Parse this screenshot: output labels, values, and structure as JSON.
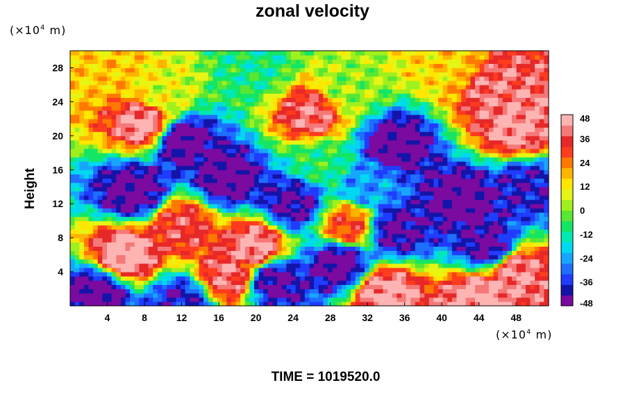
{
  "chart_data": {
    "type": "heatmap",
    "title": "zonal velocity",
    "ylabel": "Height",
    "x_unit": {
      "prefix": "(×10",
      "exp": "4",
      "suffix": " m)"
    },
    "y_unit": {
      "prefix": "(×10",
      "exp": "4",
      "suffix": " m)"
    },
    "xlim": [
      0,
      51.5
    ],
    "ylim": [
      0,
      30
    ],
    "x_ticks": [
      4,
      8,
      12,
      16,
      20,
      24,
      28,
      32,
      36,
      40,
      44,
      48
    ],
    "y_ticks": [
      4,
      8,
      12,
      16,
      20,
      24,
      28
    ],
    "colorbar": {
      "min": -48,
      "max": 48,
      "ticks": [
        48,
        36,
        24,
        12,
        0,
        -12,
        -24,
        -36,
        -48
      ],
      "colors": [
        "#7a0aa0",
        "#1414a8",
        "#1f3cff",
        "#1e6eff",
        "#17a6ff",
        "#00d8f0",
        "#00e8b4",
        "#14e664",
        "#5ae632",
        "#a0f01e",
        "#e6f514",
        "#ffe600",
        "#ffb400",
        "#ff7800",
        "#ff3c1e",
        "#e62828",
        "#f57878",
        "#ffb4b4"
      ]
    },
    "field_regions": [
      {
        "x": 3,
        "y": 1.5,
        "v": -48
      },
      {
        "x": 12,
        "y": 0.5,
        "v": -40
      },
      {
        "x": 6,
        "y": 6,
        "v": 48
      },
      {
        "x": 20,
        "y": 7,
        "v": 44
      },
      {
        "x": 17,
        "y": 3.5,
        "v": 40
      },
      {
        "x": 22,
        "y": 3,
        "v": -45
      },
      {
        "x": 29,
        "y": 5,
        "v": -48
      },
      {
        "x": 35,
        "y": 9,
        "v": -45
      },
      {
        "x": 34,
        "y": 1.5,
        "v": 46
      },
      {
        "x": 44,
        "y": 1,
        "v": 46
      },
      {
        "x": 48,
        "y": 4,
        "v": 42
      },
      {
        "x": 45,
        "y": 7,
        "v": -45
      },
      {
        "x": 7,
        "y": 13.5,
        "v": -48
      },
      {
        "x": 17,
        "y": 15,
        "v": -48
      },
      {
        "x": 24,
        "y": 12,
        "v": -44
      },
      {
        "x": 32,
        "y": 14,
        "v": -25
      },
      {
        "x": 42,
        "y": 12.5,
        "v": -48
      },
      {
        "x": 49,
        "y": 14,
        "v": -40
      },
      {
        "x": 12,
        "y": 19.5,
        "v": -48
      },
      {
        "x": 35,
        "y": 19,
        "v": -48
      },
      {
        "x": 27,
        "y": 17,
        "v": -8
      },
      {
        "x": 8,
        "y": 21.5,
        "v": 44
      },
      {
        "x": 26,
        "y": 22.5,
        "v": 40
      },
      {
        "x": 48,
        "y": 21,
        "v": 44
      },
      {
        "x": 46,
        "y": 25,
        "v": 40
      },
      {
        "x": 10,
        "y": 25,
        "v": 8
      },
      {
        "x": 30,
        "y": 25.5,
        "v": 2
      },
      {
        "x": 20,
        "y": 28,
        "v": -10
      },
      {
        "x": 40,
        "y": 28.5,
        "v": 14
      },
      {
        "x": 5,
        "y": 28,
        "v": 16
      },
      {
        "x": 30,
        "y": 9.5,
        "v": 30
      },
      {
        "x": 12,
        "y": 9.5,
        "v": 36
      }
    ]
  },
  "footer": {
    "time_label": "TIME = 1019520.0"
  }
}
